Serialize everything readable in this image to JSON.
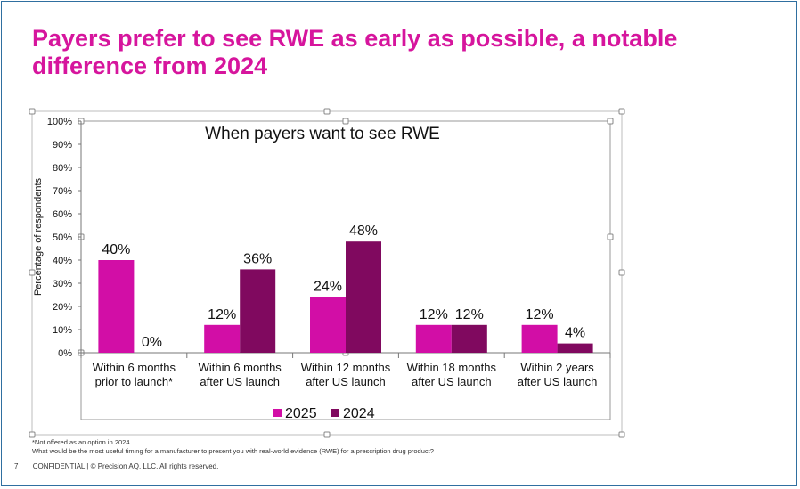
{
  "slide": {
    "title": "Payers prefer to see RWE as early as possible, a notable difference from 2024",
    "footnotes": [
      "*Not offered as an option in 2024.",
      "What would be the most useful timing for a manufacturer to present you with real-world evidence (RWE) for a prescription drug product?"
    ],
    "page_number": "7",
    "footer_text": "CONFIDENTIAL | © Precision AQ, LLC. All rights reserved."
  },
  "colors": {
    "title": "#d6159d",
    "series_2025": "#d20ea6",
    "series_2024": "#80095f",
    "frame": "#2f6fa0"
  },
  "chart_data": {
    "type": "bar",
    "title": "When payers want to see RWE",
    "ylabel": "Percentage of respondents",
    "xlabel": "",
    "ylim": [
      0,
      100
    ],
    "yticks": [
      0,
      10,
      20,
      30,
      40,
      50,
      60,
      70,
      80,
      90,
      100
    ],
    "ytick_labels": [
      "0%",
      "10%",
      "20%",
      "30%",
      "40%",
      "50%",
      "60%",
      "70%",
      "80%",
      "90%",
      "100%"
    ],
    "categories": [
      [
        "Within 6 months",
        "prior to launch*"
      ],
      [
        "Within 6 months",
        "after US launch"
      ],
      [
        "Within 12 months",
        "after US launch"
      ],
      [
        "Within 18 months",
        "after US launch"
      ],
      [
        "Within 2 years",
        "after US launch"
      ]
    ],
    "series": [
      {
        "name": "2025",
        "values": [
          40,
          12,
          24,
          12,
          12
        ],
        "labels": [
          "40%",
          "12%",
          "24%",
          "12%",
          "12%"
        ]
      },
      {
        "name": "2024",
        "values": [
          0,
          36,
          48,
          12,
          4
        ],
        "labels": [
          "0%",
          "36%",
          "48%",
          "12%",
          "4%"
        ]
      }
    ],
    "legend": "bottom",
    "grid": false
  }
}
